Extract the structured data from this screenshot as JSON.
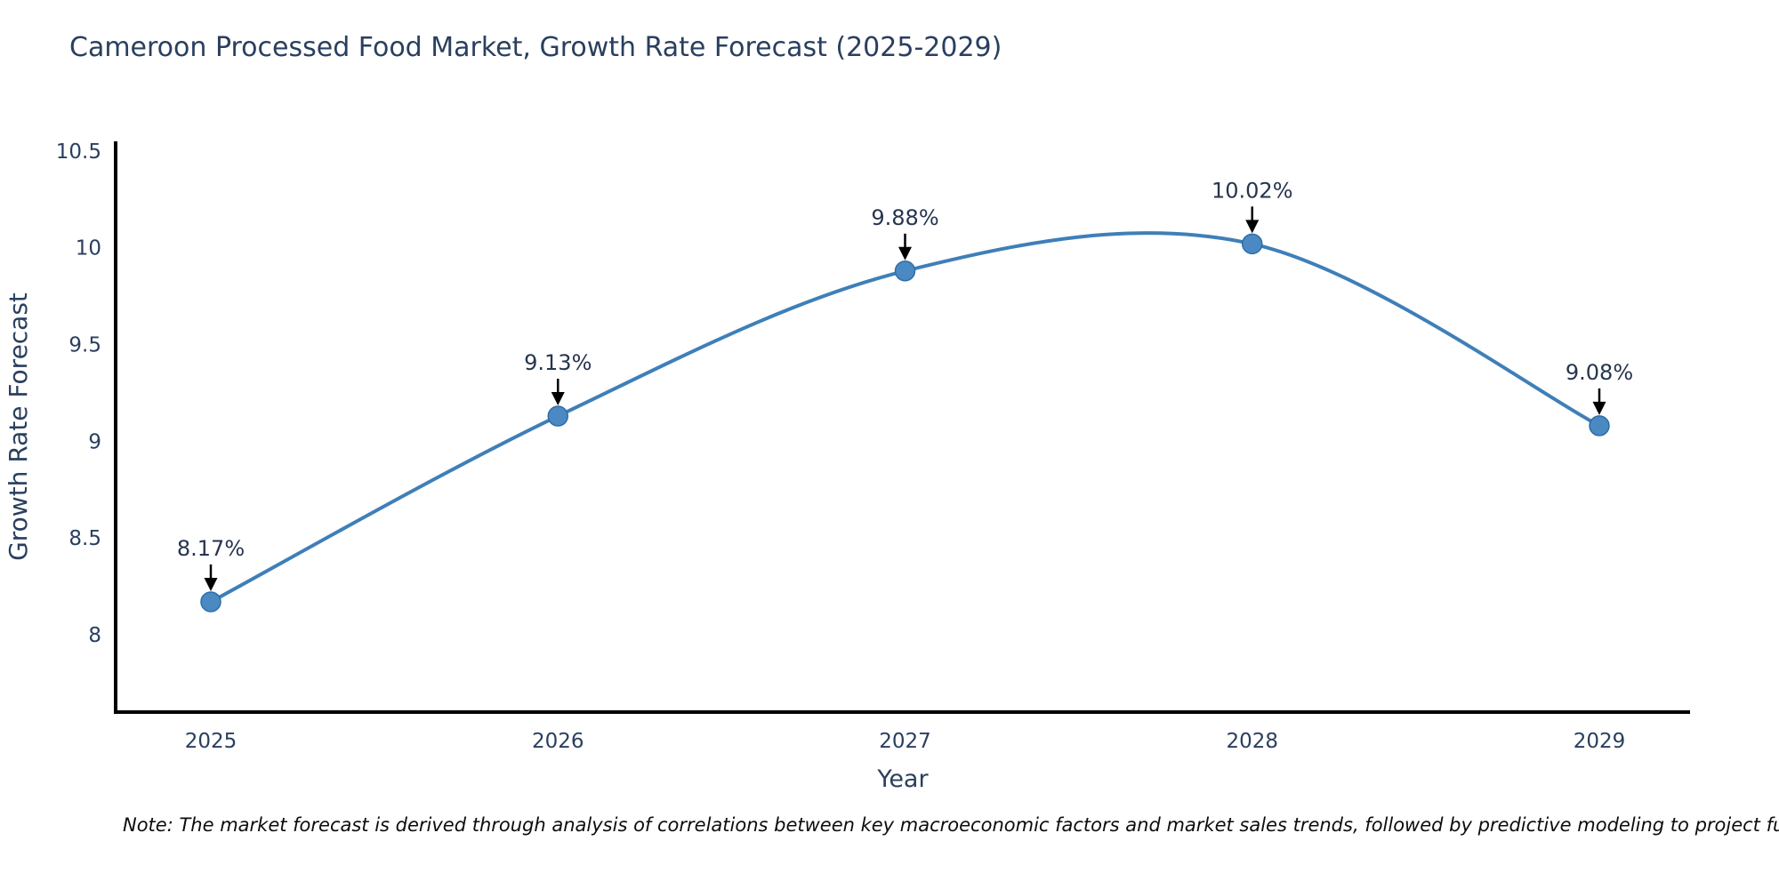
{
  "title": "Cameroon Processed Food Market, Growth Rate Forecast (2025-2029)",
  "note": "Note: The market forecast is derived through analysis of correlations between key macroeconomic factors and market sales trends, followed by predictive modeling to project future sal",
  "chart_data": {
    "type": "line",
    "title": "Cameroon Processed Food Market, Growth Rate Forecast (2025-2029)",
    "x": [
      2025,
      2026,
      2027,
      2028,
      2029
    ],
    "x_tick_labels": [
      "2025",
      "2026",
      "2027",
      "2028",
      "2029"
    ],
    "series": [
      {
        "name": "Growth Rate Forecast",
        "values": [
          8.17,
          9.13,
          9.88,
          10.02,
          9.08
        ]
      }
    ],
    "point_labels": [
      "8.17%",
      "9.13%",
      "9.88%",
      "10.02%",
      "9.08%"
    ],
    "xlabel": "Year",
    "ylabel": "Growth Rate Forecast",
    "ylim": [
      7.6,
      10.55
    ],
    "y_ticks": [
      8,
      8.5,
      9,
      9.5,
      10,
      10.5
    ],
    "y_tick_labels": [
      "8",
      "8.5",
      "9",
      "9.5",
      "10",
      "10.5"
    ],
    "line_shape": "spline",
    "grid": false,
    "legend": "none",
    "colors": {
      "line": "#3f7fb8",
      "marker": "#4a89c2",
      "marker_edge": "#2f6da7",
      "axis": "#000000",
      "text": "#2a3f5f",
      "annotation": "#26354e",
      "arrow": "#000000",
      "note": "#0d0d0d"
    }
  }
}
